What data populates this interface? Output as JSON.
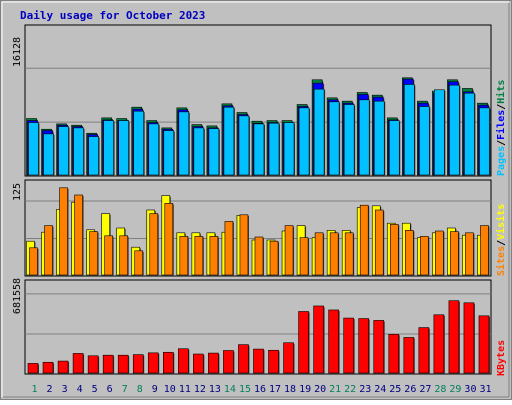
{
  "title": "Daily usage for October 2023",
  "colors": {
    "panel_bg": "#c0c0c0",
    "plot_bg": "#c0c0c0",
    "title": "#0000c0",
    "grid": "#808080",
    "pages": "#00c0ff",
    "files": "#0000ff",
    "hits": "#008040",
    "sites": "#ff8000",
    "visits": "#ffff00",
    "kbytes": "#ff0000",
    "weekend_day": "#00805c",
    "weekday": "#000080"
  },
  "legends": {
    "top": {
      "pages": "Pages",
      "files": "Files",
      "hits": "Hits",
      "sep": "/"
    },
    "middle": {
      "sites": "Sites",
      "visits": "Visits",
      "sep": "/"
    },
    "bottom": {
      "kbytes": "KBytes"
    }
  },
  "y_tick_labels": {
    "top": "16128",
    "middle": "125",
    "bottom": "681558"
  },
  "chart_data": [
    {
      "type": "bar",
      "title": "Daily usage for October 2023",
      "categories": [
        "1",
        "2",
        "3",
        "4",
        "5",
        "6",
        "7",
        "8",
        "9",
        "10",
        "11",
        "12",
        "13",
        "14",
        "15",
        "16",
        "17",
        "18",
        "19",
        "20",
        "21",
        "22",
        "23",
        "24",
        "25",
        "26",
        "27",
        "28",
        "29",
        "30",
        "31"
      ],
      "ylim": [
        0,
        22600
      ],
      "ytick": 16128,
      "series": [
        {
          "name": "Pages",
          "values": [
            8000,
            6300,
            7400,
            7200,
            5900,
            8300,
            8300,
            9700,
            7800,
            6800,
            9600,
            7200,
            7100,
            10300,
            9000,
            7800,
            7900,
            8000,
            10200,
            13000,
            11100,
            10700,
            11400,
            11200,
            8300,
            13700,
            10400,
            12900,
            13600,
            12400,
            10200
          ]
        },
        {
          "name": "Files",
          "values": [
            8300,
            6800,
            7600,
            7400,
            6200,
            8400,
            8300,
            10000,
            8000,
            7000,
            9900,
            7400,
            7200,
            10500,
            9200,
            7900,
            8000,
            8000,
            10400,
            13900,
            11400,
            10900,
            12200,
            11800,
            8400,
            14500,
            10900,
            12400,
            14100,
            12600,
            10600
          ]
        },
        {
          "name": "Hits",
          "values": [
            8600,
            7000,
            7800,
            7600,
            6400,
            8700,
            8600,
            10300,
            8300,
            7200,
            10200,
            7700,
            7500,
            10800,
            9500,
            8200,
            8300,
            8300,
            10700,
            14400,
            11700,
            11200,
            12500,
            12100,
            8700,
            14700,
            11200,
            12700,
            14400,
            13100,
            10900
          ]
        }
      ]
    },
    {
      "type": "bar",
      "categories": [
        "1",
        "2",
        "3",
        "4",
        "5",
        "6",
        "7",
        "8",
        "9",
        "10",
        "11",
        "12",
        "13",
        "14",
        "15",
        "16",
        "17",
        "18",
        "19",
        "20",
        "21",
        "22",
        "23",
        "24",
        "25",
        "26",
        "27",
        "28",
        "29",
        "30",
        "31"
      ],
      "ylim": [
        0,
        160
      ],
      "ytick": 125,
      "series": [
        {
          "name": "Visits",
          "values": [
            58,
            73,
            111,
            123,
            77,
            104,
            80,
            48,
            110,
            134,
            72,
            72,
            72,
            73,
            101,
            60,
            60,
            75,
            84,
            64,
            76,
            76,
            114,
            117,
            88,
            88,
            64,
            72,
            80,
            68,
            68
          ]
        },
        {
          "name": "Sites",
          "values": [
            47,
            84,
            147,
            135,
            74,
            67,
            67,
            42,
            104,
            121,
            66,
            66,
            66,
            91,
            102,
            65,
            58,
            84,
            64,
            72,
            72,
            72,
            118,
            110,
            86,
            76,
            66,
            75,
            74,
            72,
            84
          ]
        }
      ]
    },
    {
      "type": "bar",
      "categories": [
        "1",
        "2",
        "3",
        "4",
        "5",
        "6",
        "7",
        "8",
        "9",
        "10",
        "11",
        "12",
        "13",
        "14",
        "15",
        "16",
        "17",
        "18",
        "19",
        "20",
        "21",
        "22",
        "23",
        "24",
        "25",
        "26",
        "27",
        "28",
        "29",
        "30",
        "31"
      ],
      "ylim": [
        0,
        800000
      ],
      "ytick": 681558,
      "series": [
        {
          "name": "KBytes",
          "values": [
            90000,
            100000,
            110000,
            175000,
            155000,
            160000,
            160000,
            165000,
            180000,
            185000,
            215000,
            170000,
            178000,
            200000,
            250000,
            212000,
            202000,
            266000,
            532000,
            579000,
            545000,
            476000,
            472000,
            456000,
            338000,
            311000,
            395000,
            504000,
            624000,
            606000,
            495000
          ]
        }
      ]
    }
  ]
}
